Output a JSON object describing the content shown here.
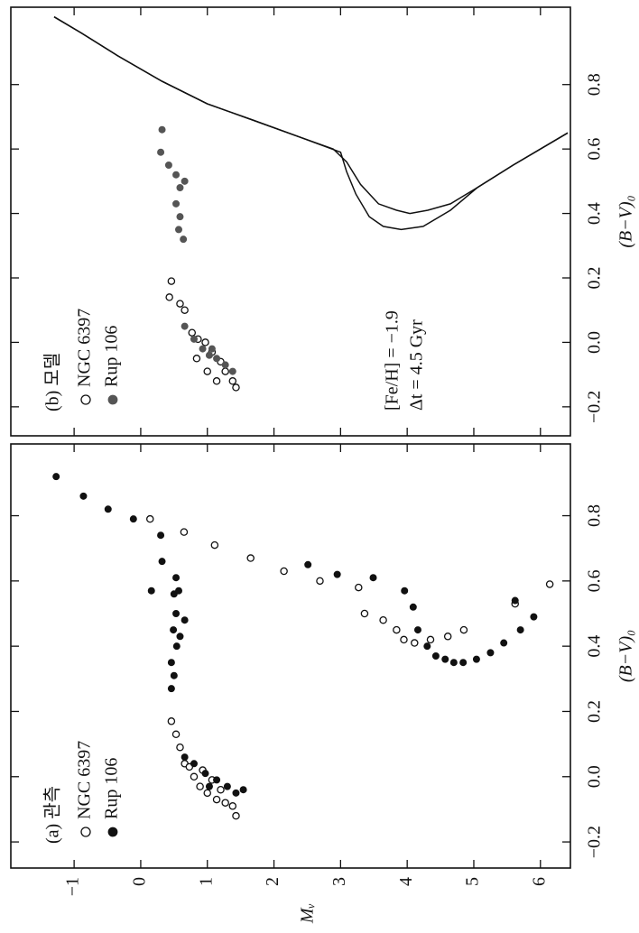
{
  "chart_data": [
    {
      "type": "scatter",
      "title": "(a) 관측",
      "xlabel": "(B−V)₀",
      "ylabel": "Mᵥ",
      "xlim": [
        -0.28,
        1.02
      ],
      "ylim": [
        6.45,
        -1.95
      ],
      "xticks": [
        {
          "value": -0.2,
          "label": "−0.2"
        },
        {
          "value": 0,
          "label": "0.0"
        },
        0.2,
        0.4,
        0.6,
        0.8
      ],
      "yticks": [
        {
          "value": -1,
          "label": "−1"
        },
        0,
        1,
        2,
        3,
        4,
        5,
        6
      ],
      "series": [
        {
          "name": "NGC 6397",
          "marker": "open",
          "color": "#111111",
          "x": [
            0.79,
            0.75,
            0.71,
            0.67,
            0.63,
            0.6,
            0.58,
            0.5,
            0.48,
            0.45,
            0.42,
            0.41,
            0.42,
            0.43,
            0.45,
            0.53,
            0.59,
            0.17,
            0.13,
            0.09,
            0.04,
            0.0,
            -0.03,
            -0.05,
            -0.07,
            -0.08,
            -0.09,
            -0.12,
            -0.04,
            -0.01,
            0.02,
            0.03
          ],
          "y": [
            0.14,
            0.65,
            1.11,
            1.65,
            2.15,
            2.69,
            3.27,
            3.36,
            3.64,
            3.84,
            3.95,
            4.11,
            4.35,
            4.61,
            4.85,
            5.62,
            6.14,
            0.46,
            0.53,
            0.59,
            0.66,
            0.8,
            0.89,
            1.0,
            1.14,
            1.27,
            1.38,
            1.43,
            1.2,
            1.07,
            0.93,
            0.73
          ]
        },
        {
          "name": "Rup 106",
          "marker": "filled",
          "color": "#111111",
          "x": [
            0.92,
            0.86,
            0.82,
            0.79,
            0.74,
            0.66,
            0.57,
            0.65,
            0.62,
            0.61,
            0.57,
            0.52,
            0.45,
            0.4,
            0.37,
            0.36,
            0.35,
            0.35,
            0.36,
            0.38,
            0.41,
            0.45,
            0.49,
            0.54,
            0.61,
            0.56,
            0.5,
            0.45,
            0.4,
            0.35,
            0.31,
            0.27,
            0.57,
            0.43,
            0.48,
            0.06,
            0.04,
            0.01,
            -0.01,
            -0.03,
            -0.05,
            -0.04,
            -0.03
          ],
          "y": [
            -1.27,
            -0.86,
            -0.49,
            -0.11,
            0.3,
            0.32,
            0.16,
            2.51,
            2.95,
            3.49,
            3.96,
            4.09,
            4.16,
            4.3,
            4.43,
            4.57,
            4.7,
            4.84,
            5.04,
            5.25,
            5.45,
            5.7,
            5.9,
            5.62,
            0.53,
            0.5,
            0.53,
            0.49,
            0.54,
            0.46,
            0.5,
            0.46,
            0.57,
            0.59,
            0.66,
            0.66,
            0.8,
            0.97,
            1.14,
            1.3,
            1.43,
            1.54,
            1.03
          ]
        }
      ]
    },
    {
      "type": "scatter",
      "title": "(b) 모델",
      "xlabel": "(B−V)₀",
      "xlim": [
        -0.29,
        1.04
      ],
      "ylim": [
        6.45,
        -1.95
      ],
      "xticks": [
        {
          "value": -0.2,
          "label": "−0.2"
        },
        {
          "value": 0,
          "label": "0.0"
        },
        0.2,
        0.4,
        0.6,
        0.8
      ],
      "yticks": [
        -1,
        0,
        1,
        2,
        3,
        4,
        5,
        6
      ],
      "ytick_labels": false,
      "annotations": [
        "[Fe/H] = −1.9",
        "Δt = 4.5 Gyr"
      ],
      "series": [
        {
          "name": "NGC 6397",
          "marker": "open",
          "color": "#111111",
          "x": [
            0.19,
            0.14,
            0.12,
            0.1,
            0.03,
            0.01,
            0.0,
            -0.03,
            -0.06,
            -0.09,
            -0.12,
            -0.14,
            -0.12,
            -0.09,
            -0.05
          ],
          "y": [
            0.46,
            0.43,
            0.59,
            0.66,
            0.77,
            0.86,
            0.97,
            1.07,
            1.2,
            1.27,
            1.38,
            1.43,
            1.14,
            1.0,
            0.84
          ]
        },
        {
          "name": "Rup 106",
          "marker": "filled",
          "color": "#555555",
          "x": [
            0.05,
            0.01,
            -0.02,
            -0.04,
            -0.05,
            -0.07,
            -0.09,
            -0.02,
            0.66,
            0.59,
            0.55,
            0.52,
            0.48,
            0.43,
            0.39,
            0.35,
            0.32,
            0.5
          ],
          "y": [
            0.66,
            0.8,
            0.93,
            1.03,
            1.14,
            1.27,
            1.38,
            1.07,
            0.32,
            0.3,
            0.42,
            0.53,
            0.59,
            0.53,
            0.59,
            0.57,
            0.64,
            0.66
          ]
        }
      ],
      "lines": [
        {
          "color": "#111111",
          "x": [
            1.01,
            0.96,
            0.89,
            0.81,
            0.74,
            0.69,
            0.64,
            0.6,
            0.56,
            0.49,
            0.43,
            0.41,
            0.4,
            0.41,
            0.43,
            0.48,
            0.55,
            0.65
          ],
          "y": [
            -1.3,
            -0.89,
            -0.35,
            0.32,
            1.0,
            1.68,
            2.35,
            2.89,
            3.09,
            3.3,
            3.57,
            3.84,
            4.04,
            4.31,
            4.65,
            5.05,
            5.59,
            6.41
          ]
        },
        {
          "color": "#111111",
          "x": [
            1.01,
            0.96,
            0.89,
            0.81,
            0.74,
            0.69,
            0.64,
            0.59,
            0.53,
            0.46,
            0.39,
            0.36,
            0.35,
            0.36,
            0.41,
            0.48,
            0.55,
            0.65
          ],
          "y": [
            -1.3,
            -0.89,
            -0.35,
            0.32,
            1.0,
            1.68,
            2.35,
            3.0,
            3.09,
            3.23,
            3.43,
            3.64,
            3.91,
            4.24,
            4.65,
            5.05,
            5.59,
            6.41
          ]
        }
      ]
    }
  ]
}
